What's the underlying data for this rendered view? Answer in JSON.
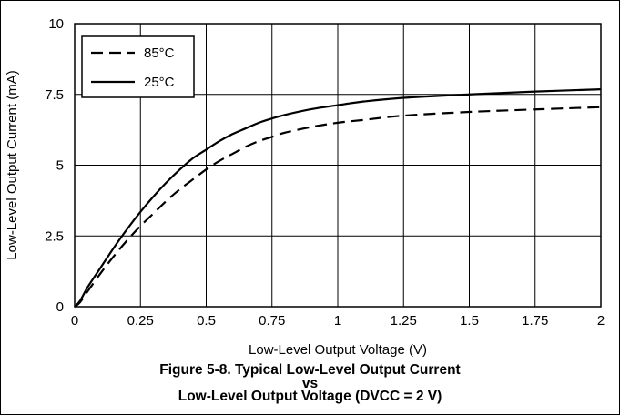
{
  "chart_data": {
    "type": "line",
    "xlabel": "Low-Level Output Voltage (V)",
    "ylabel": "Low-Level Output Current (mA)",
    "xlim": [
      0,
      2
    ],
    "ylim": [
      0,
      10
    ],
    "x_ticks": [
      0,
      0.25,
      0.5,
      0.75,
      1,
      1.25,
      1.5,
      1.75,
      2
    ],
    "x_tick_labels": [
      "0",
      "0.25",
      "0.5",
      "0.75",
      "1",
      "1.25",
      "1.5",
      "1.75",
      "2"
    ],
    "y_ticks": [
      0,
      2.5,
      5,
      7.5,
      10
    ],
    "y_tick_labels": [
      "0",
      "2.5",
      "5",
      "7.5",
      "10"
    ],
    "grid": true,
    "legend_position": "top-left",
    "series": [
      {
        "name": "85°C",
        "style": "dashed",
        "color": "#000000",
        "x": [
          0,
          0.02,
          0.05,
          0.1,
          0.15,
          0.2,
          0.25,
          0.3,
          0.35,
          0.4,
          0.45,
          0.5,
          0.55,
          0.6,
          0.65,
          0.7,
          0.75,
          0.8,
          0.9,
          1.0,
          1.1,
          1.25,
          1.5,
          1.75,
          2.0
        ],
        "y": [
          0,
          0.15,
          0.55,
          1.2,
          1.8,
          2.35,
          2.85,
          3.3,
          3.75,
          4.15,
          4.5,
          4.85,
          5.15,
          5.4,
          5.65,
          5.85,
          6.0,
          6.15,
          6.35,
          6.5,
          6.6,
          6.75,
          6.88,
          6.97,
          7.05
        ]
      },
      {
        "name": "25°C",
        "style": "solid",
        "color": "#000000",
        "x": [
          0,
          0.02,
          0.05,
          0.1,
          0.15,
          0.2,
          0.25,
          0.3,
          0.35,
          0.4,
          0.45,
          0.5,
          0.55,
          0.6,
          0.65,
          0.7,
          0.75,
          0.8,
          0.9,
          1.0,
          1.1,
          1.25,
          1.5,
          1.75,
          2.0
        ],
        "y": [
          0,
          0.2,
          0.7,
          1.4,
          2.1,
          2.75,
          3.35,
          3.9,
          4.4,
          4.85,
          5.25,
          5.55,
          5.85,
          6.1,
          6.3,
          6.5,
          6.65,
          6.78,
          6.98,
          7.12,
          7.25,
          7.38,
          7.5,
          7.6,
          7.68
        ]
      }
    ]
  },
  "caption": {
    "line1": "Figure 5-8. Typical Low-Level Output Current",
    "line2": "vs",
    "line3": "Low-Level Output Voltage (DVCC = 2 V)"
  }
}
